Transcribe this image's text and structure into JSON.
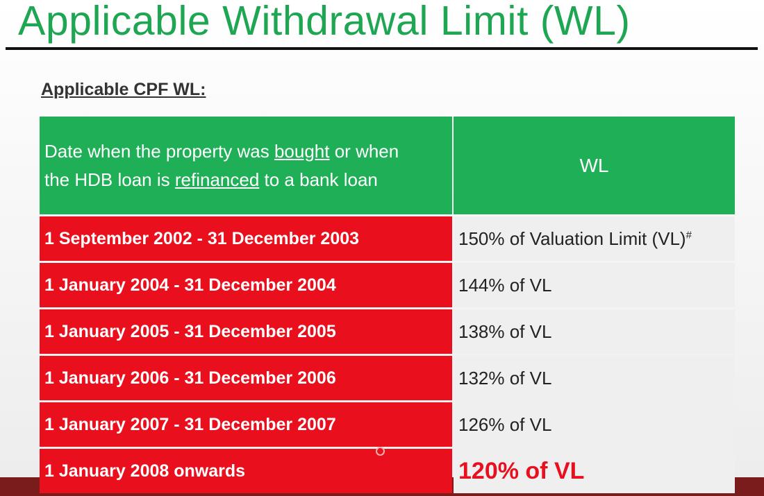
{
  "title": "Applicable Withdrawal Limit (WL)",
  "subtitle": "Applicable CPF WL:",
  "table": {
    "header": [
      [
        {
          "text": "Date when the property was "
        },
        {
          "text": "bought",
          "underline": true
        },
        {
          "text": " or when the HDB loan is "
        },
        {
          "text": "refinanced",
          "underline": true
        },
        {
          "text": " to a bank loan"
        }
      ],
      [
        {
          "text": "WL"
        }
      ]
    ],
    "rows": [
      [
        {
          "text": "1 September 2002 - 31 December 2003"
        },
        {
          "text": "150% of Valuation Limit (VL)",
          "sup": "#"
        }
      ],
      [
        {
          "text": "1 January 2004 - 31 December 2004"
        },
        {
          "text": "144% of VL"
        }
      ],
      [
        {
          "text": "1 January 2005 - 31 December 2005"
        },
        {
          "text": "138% of VL"
        }
      ],
      [
        {
          "text": "1 January 2006 - 31 December 2006"
        },
        {
          "text": "132% of VL"
        }
      ],
      [
        {
          "text": "1 January 2007 - 31 December 2007"
        },
        {
          "text": "126% of VL"
        }
      ],
      [
        {
          "text": "1 January 2008 onwards"
        },
        {
          "text": "120% of VL",
          "emphasis": true
        }
      ]
    ]
  }
}
